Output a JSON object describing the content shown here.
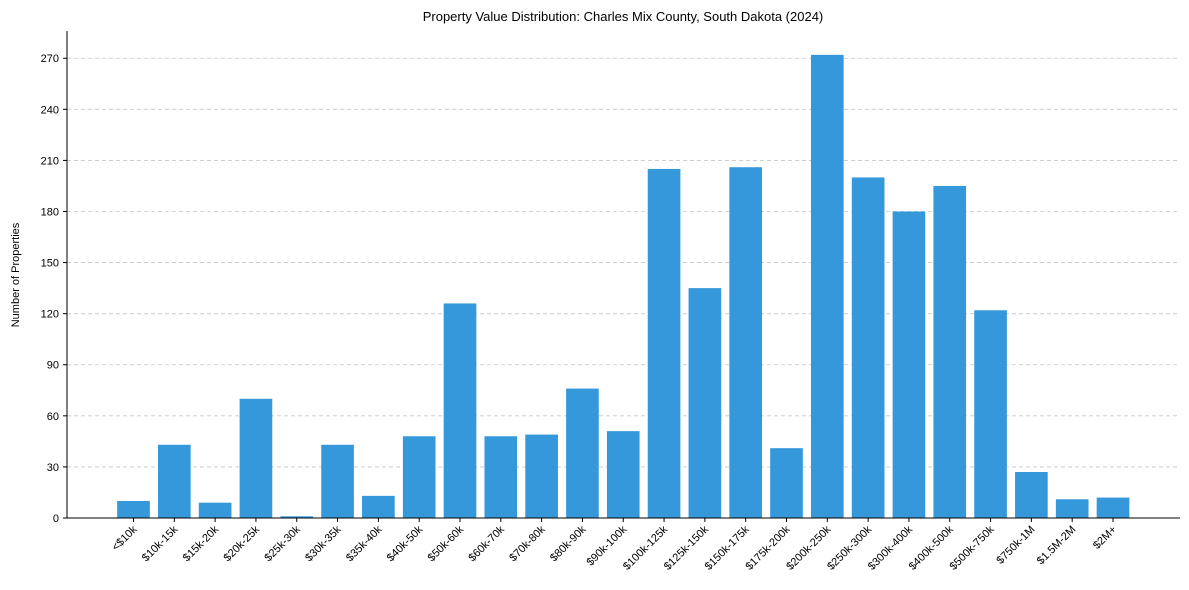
{
  "chart_data": {
    "type": "bar",
    "title": "Property Value Distribution: Charles Mix County, South Dakota (2024)",
    "xlabel": "",
    "ylabel": "Number of Properties",
    "categories": [
      "<$10k",
      "$10k-15k",
      "$15k-20k",
      "$20k-25k",
      "$25k-30k",
      "$30k-35k",
      "$35k-40k",
      "$40k-50k",
      "$50k-60k",
      "$60k-70k",
      "$70k-80k",
      "$80k-90k",
      "$90k-100k",
      "$100k-125k",
      "$125k-150k",
      "$150k-175k",
      "$175k-200k",
      "$200k-250k",
      "$250k-300k",
      "$300k-400k",
      "$400k-500k",
      "$500k-750k",
      "$750k-1M",
      "$1.5M-2M",
      "$2M+"
    ],
    "values": [
      10,
      43,
      9,
      70,
      1,
      43,
      13,
      48,
      126,
      48,
      49,
      76,
      51,
      205,
      135,
      206,
      41,
      272,
      200,
      180,
      195,
      122,
      27,
      11,
      12
    ],
    "yticks": [
      0,
      30,
      60,
      90,
      120,
      150,
      180,
      210,
      240,
      270
    ],
    "ylim": [
      0,
      286
    ],
    "grid": "y-dashed",
    "bar_color": "#3498db"
  }
}
